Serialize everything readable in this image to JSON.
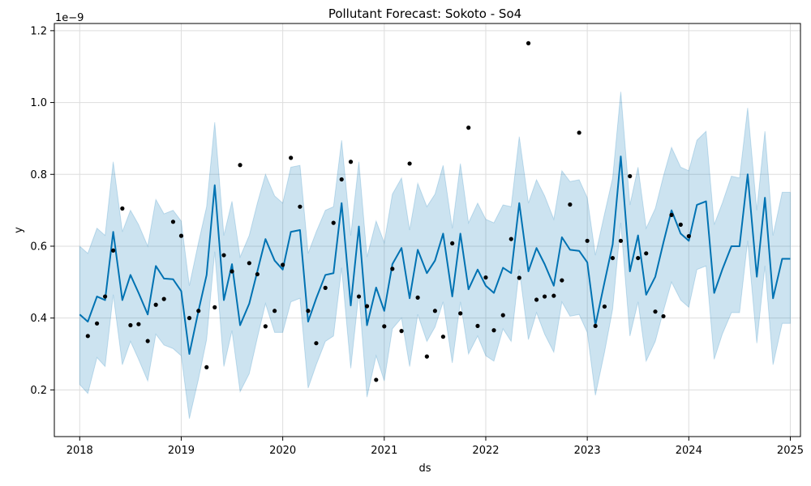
{
  "chart_data": {
    "type": "line",
    "title": "Pollutant Forecast: Sokoto - So4",
    "xlabel": "ds",
    "ylabel": "y",
    "y_offset_label": "1e−9",
    "x_ticks": [
      "2018",
      "2019",
      "2020",
      "2021",
      "2022",
      "2023",
      "2024",
      "2025"
    ],
    "y_ticks": [
      "0.2",
      "0.4",
      "0.6",
      "0.8",
      "1.0",
      "1.2"
    ],
    "y_tick_values": [
      0.2,
      0.4,
      0.6,
      0.8,
      1.0,
      1.2
    ],
    "xlim": [
      2017.75,
      2025.1
    ],
    "ylim": [
      0.07,
      1.22
    ],
    "grid": true,
    "colors": {
      "forecast_line": "#0072b2",
      "interval_fill": "#0072b2",
      "observed": "#000000",
      "grid": "#dddddd"
    },
    "series": [
      {
        "kind": "forecast",
        "x": [
          2018.0,
          2018.08,
          2018.17,
          2018.25,
          2018.33,
          2018.42,
          2018.5,
          2018.58,
          2018.67,
          2018.75,
          2018.83,
          2018.92,
          2019.0,
          2019.08,
          2019.17,
          2019.25,
          2019.33,
          2019.42,
          2019.5,
          2019.58,
          2019.67,
          2019.75,
          2019.83,
          2019.92,
          2020.0,
          2020.08,
          2020.17,
          2020.25,
          2020.33,
          2020.42,
          2020.5,
          2020.58,
          2020.67,
          2020.75,
          2020.83,
          2020.92,
          2021.0,
          2021.08,
          2021.17,
          2021.25,
          2021.33,
          2021.42,
          2021.5,
          2021.58,
          2021.67,
          2021.75,
          2021.83,
          2021.92,
          2022.0,
          2022.08,
          2022.17,
          2022.25,
          2022.33,
          2022.42,
          2022.5,
          2022.58,
          2022.67,
          2022.75,
          2022.83,
          2022.92,
          2023.0,
          2023.08,
          2023.17,
          2023.25,
          2023.33,
          2023.42,
          2023.5,
          2023.58,
          2023.67,
          2023.75,
          2023.83,
          2023.92,
          2024.0,
          2024.08,
          2024.17,
          2024.25,
          2024.33,
          2024.42,
          2024.5,
          2024.58,
          2024.67,
          2024.75,
          2024.83,
          2024.92,
          2025.0
        ],
        "values": [
          0.41,
          0.39,
          0.46,
          0.45,
          0.64,
          0.45,
          0.52,
          0.47,
          0.41,
          0.545,
          0.51,
          0.508,
          0.475,
          0.3,
          0.42,
          0.52,
          0.77,
          0.45,
          0.55,
          0.38,
          0.44,
          0.53,
          0.62,
          0.56,
          0.535,
          0.64,
          0.645,
          0.39,
          0.455,
          0.52,
          0.525,
          0.72,
          0.435,
          0.655,
          0.38,
          0.485,
          0.42,
          0.55,
          0.595,
          0.455,
          0.59,
          0.525,
          0.56,
          0.635,
          0.46,
          0.635,
          0.48,
          0.535,
          0.49,
          0.47,
          0.54,
          0.525,
          0.72,
          0.53,
          0.595,
          0.55,
          0.49,
          0.625,
          0.59,
          0.587,
          0.555,
          0.38,
          0.5,
          0.605,
          0.85,
          0.53,
          0.63,
          0.465,
          0.515,
          0.61,
          0.7,
          0.635,
          0.615,
          0.715,
          0.725,
          0.47,
          0.535,
          0.6,
          0.6,
          0.8,
          0.515,
          0.735,
          0.455,
          0.565,
          0.565
        ],
        "upper": [
          0.6,
          0.58,
          0.65,
          0.63,
          0.835,
          0.64,
          0.7,
          0.66,
          0.6,
          0.73,
          0.69,
          0.7,
          0.67,
          0.49,
          0.61,
          0.71,
          0.945,
          0.63,
          0.725,
          0.57,
          0.63,
          0.72,
          0.8,
          0.74,
          0.72,
          0.82,
          0.825,
          0.58,
          0.64,
          0.7,
          0.71,
          0.895,
          0.63,
          0.835,
          0.57,
          0.67,
          0.61,
          0.745,
          0.79,
          0.645,
          0.775,
          0.71,
          0.745,
          0.825,
          0.65,
          0.83,
          0.665,
          0.72,
          0.675,
          0.665,
          0.715,
          0.71,
          0.905,
          0.72,
          0.785,
          0.74,
          0.675,
          0.81,
          0.78,
          0.785,
          0.735,
          0.575,
          0.69,
          0.79,
          1.03,
          0.715,
          0.82,
          0.65,
          0.705,
          0.795,
          0.875,
          0.82,
          0.81,
          0.895,
          0.92,
          0.66,
          0.72,
          0.795,
          0.79,
          0.985,
          0.7,
          0.92,
          0.63,
          0.75,
          0.75
        ],
        "lower": [
          0.215,
          0.19,
          0.29,
          0.265,
          0.465,
          0.27,
          0.335,
          0.285,
          0.225,
          0.355,
          0.325,
          0.315,
          0.295,
          0.12,
          0.23,
          0.34,
          0.585,
          0.265,
          0.365,
          0.195,
          0.245,
          0.345,
          0.44,
          0.36,
          0.36,
          0.445,
          0.455,
          0.205,
          0.27,
          0.335,
          0.35,
          0.54,
          0.26,
          0.47,
          0.18,
          0.295,
          0.225,
          0.37,
          0.4,
          0.265,
          0.41,
          0.335,
          0.375,
          0.445,
          0.275,
          0.445,
          0.3,
          0.35,
          0.295,
          0.28,
          0.37,
          0.335,
          0.535,
          0.34,
          0.415,
          0.355,
          0.305,
          0.445,
          0.405,
          0.41,
          0.36,
          0.185,
          0.305,
          0.425,
          0.665,
          0.35,
          0.445,
          0.28,
          0.335,
          0.42,
          0.5,
          0.45,
          0.43,
          0.535,
          0.545,
          0.285,
          0.355,
          0.415,
          0.415,
          0.615,
          0.33,
          0.545,
          0.27,
          0.385,
          0.385
        ]
      },
      {
        "kind": "observed",
        "x": [
          2018.08,
          2018.17,
          2018.25,
          2018.33,
          2018.42,
          2018.5,
          2018.58,
          2018.67,
          2018.75,
          2018.83,
          2018.92,
          2019.0,
          2019.08,
          2019.17,
          2019.25,
          2019.33,
          2019.42,
          2019.5,
          2019.58,
          2019.67,
          2019.75,
          2019.83,
          2019.92,
          2020.0,
          2020.08,
          2020.17,
          2020.25,
          2020.33,
          2020.42,
          2020.5,
          2020.58,
          2020.67,
          2020.75,
          2020.83,
          2020.92,
          2021.0,
          2021.08,
          2021.17,
          2021.25,
          2021.33,
          2021.42,
          2021.5,
          2021.58,
          2021.67,
          2021.75,
          2021.83,
          2021.92,
          2022.0,
          2022.08,
          2022.17,
          2022.25,
          2022.33,
          2022.42,
          2022.5,
          2022.58,
          2022.67,
          2022.75,
          2022.83,
          2022.92,
          2023.0,
          2023.08,
          2023.17,
          2023.25,
          2023.33,
          2023.42,
          2023.5,
          2023.58,
          2023.67,
          2023.75,
          2023.83,
          2023.92,
          2024.0
        ],
        "values": [
          0.35,
          0.385,
          0.46,
          0.588,
          0.705,
          0.38,
          0.383,
          0.336,
          0.437,
          0.453,
          0.668,
          0.629,
          0.4,
          0.42,
          0.263,
          0.43,
          0.575,
          0.53,
          0.826,
          0.553,
          0.522,
          0.377,
          0.42,
          0.548,
          0.846,
          0.71,
          0.42,
          0.33,
          0.484,
          0.665,
          0.786,
          0.835,
          0.46,
          0.433,
          0.228,
          0.377,
          0.537,
          0.364,
          0.83,
          0.457,
          0.293,
          0.42,
          0.348,
          0.608,
          0.413,
          0.93,
          0.378,
          0.513,
          0.366,
          0.408,
          0.62,
          0.512,
          1.165,
          0.451,
          0.46,
          0.462,
          0.505,
          0.716,
          0.916,
          0.615,
          0.378,
          0.432,
          0.567,
          0.615,
          0.795,
          0.567,
          0.58,
          0.418,
          0.405,
          0.687,
          0.66,
          0.628
        ]
      }
    ]
  }
}
